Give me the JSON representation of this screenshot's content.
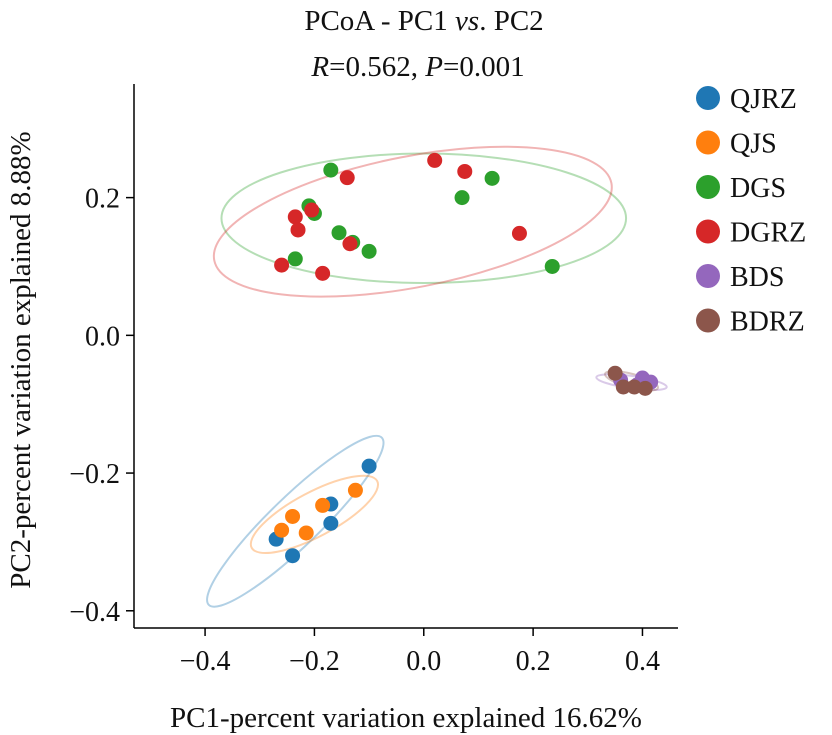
{
  "chart_data": {
    "type": "scatter",
    "title_line1_parts": [
      "PCoA - PC1 ",
      "vs",
      ". PC2"
    ],
    "title_line2_parts": [
      "R",
      "=0.562, ",
      "P",
      "=0.001"
    ],
    "xlabel": "PC1-percent variation explained 16.62%",
    "ylabel": "PC2-percent variation explained 8.88%",
    "xlim": [
      -0.53,
      0.465
    ],
    "ylim": [
      -0.425,
      0.365
    ],
    "xticks": [
      -0.4,
      -0.2,
      0.0,
      0.2,
      0.4
    ],
    "xtick_labels": [
      "−0.4",
      "−0.2",
      "0.0",
      "0.2",
      "0.4"
    ],
    "yticks": [
      -0.4,
      -0.2,
      0.0,
      0.2
    ],
    "ytick_labels": [
      "−0.4",
      "−0.2",
      "0.0",
      "0.2"
    ],
    "grid": false,
    "legend_position": "outside-right",
    "series": [
      {
        "name": "QJRZ",
        "color": "#1f77b4",
        "points": [
          [
            -0.1,
            -0.19
          ],
          [
            -0.17,
            -0.245
          ],
          [
            -0.17,
            -0.273
          ],
          [
            -0.27,
            -0.296
          ],
          [
            -0.24,
            -0.32
          ]
        ],
        "ellipse": {
          "cx": -0.235,
          "cy": -0.27,
          "rx": 0.22,
          "ry": 0.036,
          "angle_deg": 44
        }
      },
      {
        "name": "QJS",
        "color": "#ff7f0e",
        "points": [
          [
            -0.125,
            -0.225
          ],
          [
            -0.185,
            -0.247
          ],
          [
            -0.24,
            -0.263
          ],
          [
            -0.26,
            -0.283
          ],
          [
            -0.215,
            -0.287
          ]
        ],
        "ellipse": {
          "cx": -0.2,
          "cy": -0.26,
          "rx": 0.13,
          "ry": 0.032,
          "angle_deg": 28
        }
      },
      {
        "name": "DGS",
        "color": "#2ca02c",
        "points": [
          [
            -0.17,
            0.24
          ],
          [
            -0.21,
            0.188
          ],
          [
            -0.2,
            0.177
          ],
          [
            -0.155,
            0.149
          ],
          [
            -0.13,
            0.135
          ],
          [
            -0.1,
            0.122
          ],
          [
            -0.235,
            0.111
          ],
          [
            0.07,
            0.2
          ],
          [
            0.125,
            0.228
          ],
          [
            0.235,
            0.1
          ]
        ],
        "ellipse": {
          "cx": 0.0,
          "cy": 0.17,
          "rx": 0.37,
          "ry": 0.094,
          "angle_deg": 0
        }
      },
      {
        "name": "DGRZ",
        "color": "#d62728",
        "points": [
          [
            0.02,
            0.254
          ],
          [
            0.075,
            0.238
          ],
          [
            -0.14,
            0.229
          ],
          [
            -0.235,
            0.172
          ],
          [
            -0.205,
            0.182
          ],
          [
            -0.23,
            0.153
          ],
          [
            -0.135,
            0.133
          ],
          [
            -0.26,
            0.102
          ],
          [
            -0.185,
            0.09
          ],
          [
            0.175,
            0.148
          ]
        ],
        "ellipse": {
          "cx": -0.02,
          "cy": 0.165,
          "rx": 0.37,
          "ry": 0.095,
          "angle_deg": 11
        }
      },
      {
        "name": "BDS",
        "color": "#9467bd",
        "points": [
          [
            0.4,
            -0.062
          ],
          [
            0.415,
            -0.068
          ],
          [
            0.36,
            -0.065
          ],
          [
            0.39,
            -0.072
          ]
        ],
        "ellipse": {
          "cx": 0.38,
          "cy": -0.068,
          "rx": 0.065,
          "ry": 0.009,
          "angle_deg": -8
        }
      },
      {
        "name": "BDRZ",
        "color": "#8c564b",
        "points": [
          [
            0.35,
            -0.055
          ],
          [
            0.365,
            -0.075
          ],
          [
            0.385,
            -0.075
          ],
          [
            0.405,
            -0.077
          ]
        ],
        "ellipse": {
          "cx": 0.38,
          "cy": -0.066,
          "rx": 0.05,
          "ry": 0.01,
          "angle_deg": -15
        }
      }
    ]
  }
}
